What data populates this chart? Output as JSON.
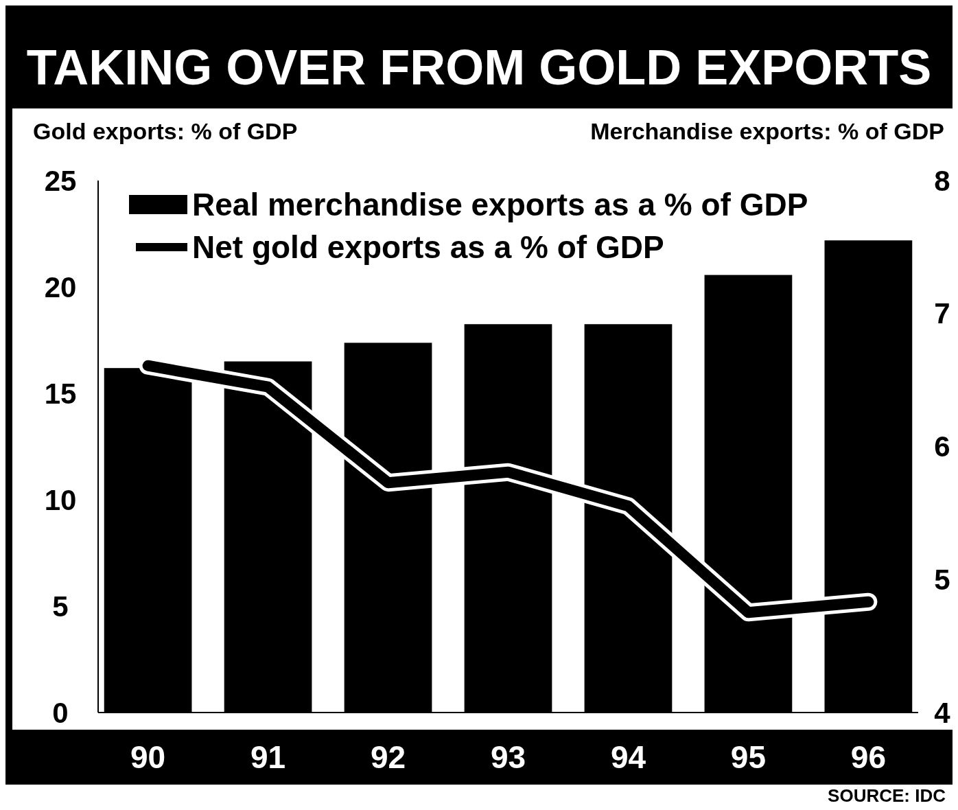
{
  "chart_data": {
    "type": "bar",
    "title": "TAKING OVER FROM GOLD EXPORTS",
    "ylabel": "Gold exports: % of GDP",
    "y2label": "Merchandise exports: % of GDP",
    "categories": [
      "90",
      "91",
      "92",
      "93",
      "94",
      "95",
      "96"
    ],
    "series": [
      {
        "name": "Real merchandise exports as a % of GDP",
        "axis": "y2",
        "color": "#000000",
        "values": [
          6.59,
          6.64,
          6.78,
          6.92,
          6.92,
          7.29,
          7.55
        ]
      },
      {
        "name": "Net gold exports as a % of GDP",
        "type": "line",
        "color": "#000000",
        "values": [
          16.3,
          15.3,
          10.8,
          11.3,
          9.7,
          4.7,
          5.2
        ]
      }
    ],
    "ylim": [
      0,
      25
    ],
    "yticks": [
      0,
      5,
      10,
      15,
      20,
      25
    ],
    "y2lim": [
      4,
      8
    ],
    "y2ticks": [
      4,
      5,
      6,
      7,
      8
    ],
    "legend": "top",
    "grid": false,
    "annotations": [
      "SOURCE: IDC"
    ]
  }
}
